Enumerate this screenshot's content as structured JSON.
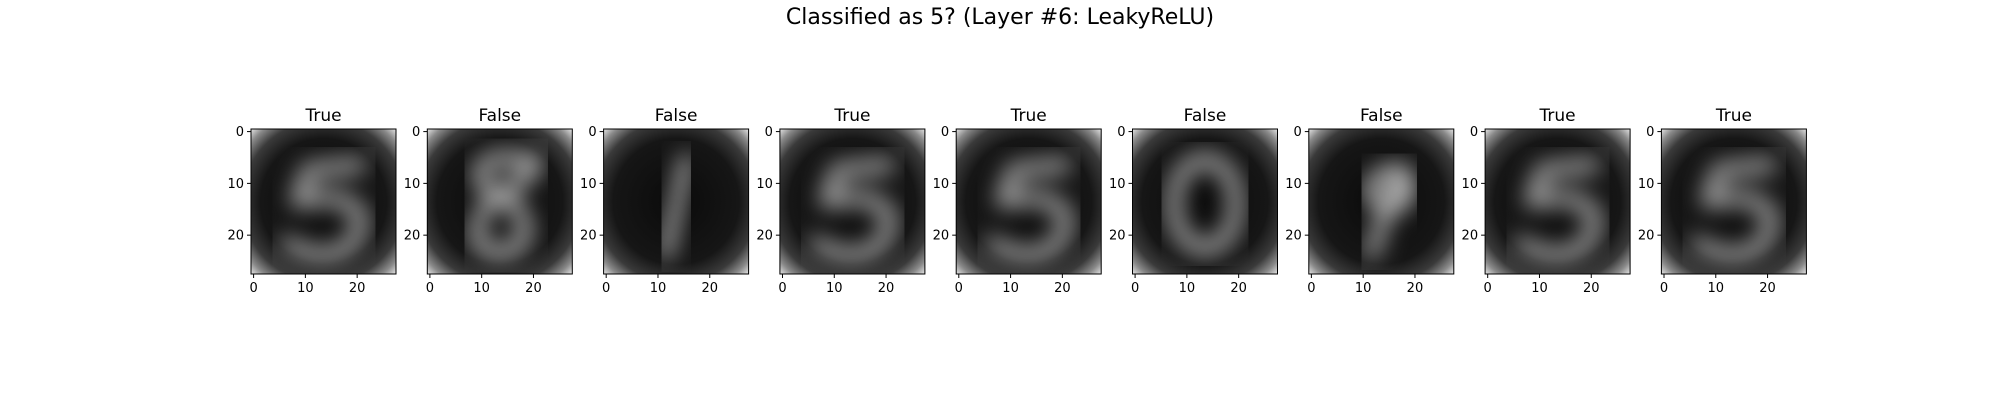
{
  "figure": {
    "title": "Classified as 5? (Layer #6: LeakyReLU)"
  },
  "chart_data": {
    "type": "image-grid",
    "title": "Classified as 5? (Layer #6: LeakyReLU)",
    "image_size": 28,
    "xticks": [
      "0",
      "10",
      "20"
    ],
    "yticks": [
      "0",
      "10",
      "20"
    ],
    "xlim": [
      -0.5,
      27.5
    ],
    "ylim": [
      27.5,
      -0.5
    ],
    "colormap": "gray",
    "panels": [
      {
        "label": "True",
        "digit": "5"
      },
      {
        "label": "False",
        "digit": "8"
      },
      {
        "label": "False",
        "digit": "1"
      },
      {
        "label": "True",
        "digit": "5"
      },
      {
        "label": "True",
        "digit": "5"
      },
      {
        "label": "False",
        "digit": "0"
      },
      {
        "label": "False",
        "digit": "9"
      },
      {
        "label": "True",
        "digit": "5"
      },
      {
        "label": "True",
        "digit": "5"
      }
    ]
  }
}
